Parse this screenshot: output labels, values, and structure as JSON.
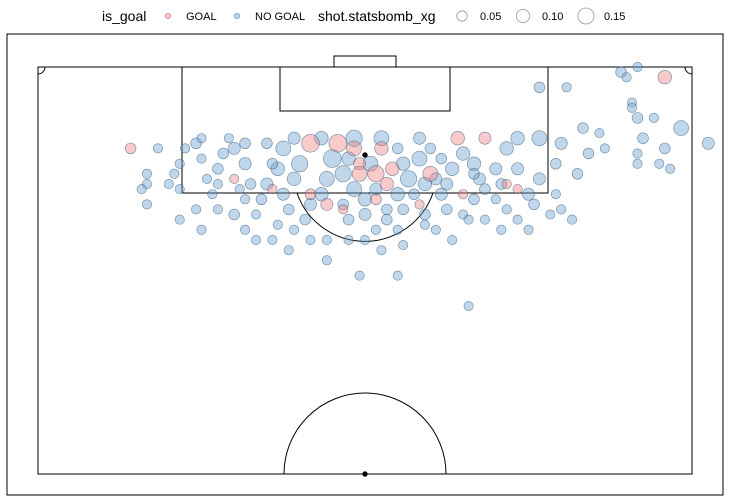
{
  "chart_data": {
    "type": "scatter",
    "x_range": [
      0,
      120
    ],
    "y_range": [
      40,
      120
    ],
    "legend": {
      "placement": "top",
      "color_title": "is_goal",
      "size_title": "shot.statsbomb_xg",
      "color_entries": [
        {
          "label": "GOAL",
          "color": "#F08080"
        },
        {
          "label": "NO GOAL",
          "color": "#6A9FD0"
        }
      ],
      "size_entries": [
        {
          "label": "0.05",
          "value": 0.05
        },
        {
          "label": "0.10",
          "value": 0.1
        },
        {
          "label": "0.15",
          "value": 0.15
        }
      ]
    },
    "series": [
      {
        "name": "GOAL",
        "color": "#F08080",
        "points": [
          [
            17,
            104,
            0.04
          ],
          [
            50,
            105,
            0.09
          ],
          [
            55,
            105,
            0.09
          ],
          [
            58,
            104,
            0.07
          ],
          [
            63,
            104,
            0.06
          ],
          [
            59,
            101,
            0.05
          ],
          [
            65,
            100,
            0.06
          ],
          [
            62,
            99,
            0.08
          ],
          [
            59,
            99,
            0.07
          ],
          [
            64,
            97,
            0.06
          ],
          [
            72,
            99,
            0.07
          ],
          [
            77,
            106,
            0.06
          ],
          [
            82,
            106,
            0.05
          ],
          [
            86,
            97,
            0.03
          ],
          [
            88,
            96,
            0.03
          ],
          [
            43,
            96,
            0.03
          ],
          [
            50,
            95,
            0.04
          ],
          [
            53,
            93,
            0.05
          ],
          [
            56,
            92,
            0.03
          ],
          [
            62,
            94,
            0.04
          ],
          [
            70,
            93,
            0.03
          ],
          [
            78,
            95,
            0.03
          ],
          [
            36,
            98,
            0.03
          ],
          [
            115,
            118,
            0.06
          ]
        ]
      },
      {
        "name": "NO GOAL",
        "color": "#6A9FD0",
        "points": [
          [
            107,
            119,
            0.04
          ],
          [
            110,
            120,
            0.03
          ],
          [
            108,
            118,
            0.03
          ],
          [
            109,
            113,
            0.03
          ],
          [
            109,
            112,
            0.03
          ],
          [
            110,
            110,
            0.04
          ],
          [
            113,
            110,
            0.03
          ],
          [
            118,
            108,
            0.07
          ],
          [
            123,
            105,
            0.05
          ],
          [
            111,
            106,
            0.04
          ],
          [
            110,
            103,
            0.03
          ],
          [
            110,
            101,
            0.03
          ],
          [
            115,
            104,
            0.04
          ],
          [
            114,
            101,
            0.03
          ],
          [
            116,
            100,
            0.03
          ],
          [
            92,
            116,
            0.04
          ],
          [
            97,
            116,
            0.03
          ],
          [
            100,
            108,
            0.04
          ],
          [
            96,
            105,
            0.05
          ],
          [
            95,
            101,
            0.04
          ],
          [
            99,
            99,
            0.04
          ],
          [
            104,
            104,
            0.03
          ],
          [
            103,
            107,
            0.03
          ],
          [
            101,
            103,
            0.04
          ],
          [
            95,
            95,
            0.03
          ],
          [
            96,
            92,
            0.03
          ],
          [
            98,
            90,
            0.03
          ],
          [
            92,
            98,
            0.05
          ],
          [
            90,
            95,
            0.05
          ],
          [
            91,
            93,
            0.04
          ],
          [
            88,
            100,
            0.05
          ],
          [
            86,
            104,
            0.06
          ],
          [
            88,
            106,
            0.06
          ],
          [
            92,
            106,
            0.07
          ],
          [
            84,
            100,
            0.05
          ],
          [
            85,
            97,
            0.04
          ],
          [
            80,
            101,
            0.06
          ],
          [
            81,
            98,
            0.05
          ],
          [
            82,
            96,
            0.04
          ],
          [
            80,
            94,
            0.04
          ],
          [
            78,
            91,
            0.03
          ],
          [
            75,
            92,
            0.04
          ],
          [
            74,
            95,
            0.05
          ],
          [
            73,
            98,
            0.05
          ],
          [
            76,
            100,
            0.06
          ],
          [
            78,
            103,
            0.06
          ],
          [
            70,
            102,
            0.07
          ],
          [
            68,
            98,
            0.08
          ],
          [
            66,
            95,
            0.06
          ],
          [
            67,
            92,
            0.04
          ],
          [
            64,
            90,
            0.04
          ],
          [
            66,
            88,
            0.03
          ],
          [
            62,
            88,
            0.03
          ],
          [
            60,
            91,
            0.05
          ],
          [
            60,
            94,
            0.06
          ],
          [
            58,
            96,
            0.07
          ],
          [
            56,
            99,
            0.08
          ],
          [
            54,
            102,
            0.09
          ],
          [
            53,
            98,
            0.07
          ],
          [
            52,
            95,
            0.06
          ],
          [
            50,
            93,
            0.05
          ],
          [
            49,
            90,
            0.04
          ],
          [
            47,
            88,
            0.03
          ],
          [
            46,
            92,
            0.04
          ],
          [
            45,
            95,
            0.05
          ],
          [
            47,
            98,
            0.06
          ],
          [
            48,
            101,
            0.08
          ],
          [
            45,
            104,
            0.07
          ],
          [
            44,
            100,
            0.06
          ],
          [
            42,
            97,
            0.05
          ],
          [
            41,
            94,
            0.04
          ],
          [
            40,
            91,
            0.03
          ],
          [
            38,
            94,
            0.03
          ],
          [
            39,
            97,
            0.04
          ],
          [
            38,
            101,
            0.05
          ],
          [
            36,
            104,
            0.05
          ],
          [
            34,
            103,
            0.04
          ],
          [
            33,
            100,
            0.04
          ],
          [
            33,
            97,
            0.03
          ],
          [
            31,
            98,
            0.03
          ],
          [
            30,
            102,
            0.03
          ],
          [
            29,
            105,
            0.04
          ],
          [
            27,
            104,
            0.03
          ],
          [
            26,
            101,
            0.03
          ],
          [
            25,
            99,
            0.03
          ],
          [
            24,
            97,
            0.03
          ],
          [
            26,
            96,
            0.03
          ],
          [
            22,
            104,
            0.03
          ],
          [
            20,
            97,
            0.03
          ],
          [
            20,
            99,
            0.03
          ],
          [
            19,
            96,
            0.03
          ],
          [
            20,
            93,
            0.03
          ],
          [
            26,
            90,
            0.03
          ],
          [
            30,
            88,
            0.03
          ],
          [
            33,
            92,
            0.03
          ],
          [
            36,
            91,
            0.04
          ],
          [
            38,
            88,
            0.03
          ],
          [
            40,
            86,
            0.03
          ],
          [
            43,
            86,
            0.03
          ],
          [
            46,
            84,
            0.03
          ],
          [
            50,
            86,
            0.03
          ],
          [
            53,
            86,
            0.03
          ],
          [
            57,
            86,
            0.03
          ],
          [
            60,
            86,
            0.03
          ],
          [
            63,
            84,
            0.03
          ],
          [
            67,
            85,
            0.03
          ],
          [
            71,
            89,
            0.03
          ],
          [
            73,
            88,
            0.03
          ],
          [
            76,
            86,
            0.03
          ],
          [
            79,
            90,
            0.03
          ],
          [
            82,
            90,
            0.03
          ],
          [
            85,
            88,
            0.03
          ],
          [
            88,
            90,
            0.03
          ],
          [
            90,
            88,
            0.03
          ],
          [
            53,
            82,
            0.03
          ],
          [
            59,
            79,
            0.03
          ],
          [
            66,
            79,
            0.03
          ],
          [
            79,
            73,
            0.03
          ],
          [
            63,
            106,
            0.07
          ],
          [
            58,
            106,
            0.08
          ],
          [
            70,
            106,
            0.05
          ],
          [
            72,
            104,
            0.04
          ],
          [
            66,
            104,
            0.04
          ],
          [
            74,
            102,
            0.04
          ],
          [
            52,
            106,
            0.06
          ],
          [
            47,
            106,
            0.05
          ],
          [
            42,
            105,
            0.04
          ],
          [
            38,
            105,
            0.04
          ],
          [
            35,
            106,
            0.03
          ],
          [
            30,
            106,
            0.03
          ],
          [
            43,
            101,
            0.04
          ],
          [
            57,
            102,
            0.06
          ],
          [
            61,
            101,
            0.07
          ],
          [
            67,
            101,
            0.06
          ],
          [
            71,
            97,
            0.06
          ],
          [
            75,
            97,
            0.05
          ],
          [
            62,
            96,
            0.05
          ],
          [
            56,
            93,
            0.04
          ],
          [
            69,
            95,
            0.04
          ],
          [
            71,
            91,
            0.04
          ],
          [
            57,
            90,
            0.04
          ],
          [
            44,
            89,
            0.03
          ],
          [
            37,
            96,
            0.03
          ],
          [
            32,
            95,
            0.03
          ],
          [
            29,
            92,
            0.03
          ],
          [
            86,
            92,
            0.03
          ],
          [
            84,
            94,
            0.03
          ],
          [
            94,
            91,
            0.03
          ],
          [
            80,
            99,
            0.04
          ],
          [
            64,
            92,
            0.04
          ]
        ]
      }
    ]
  }
}
